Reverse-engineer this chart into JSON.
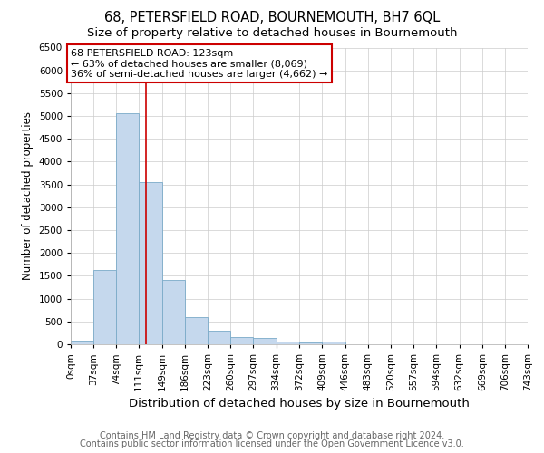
{
  "title": "68, PETERSFIELD ROAD, BOURNEMOUTH, BH7 6QL",
  "subtitle": "Size of property relative to detached houses in Bournemouth",
  "xlabel": "Distribution of detached houses by size in Bournemouth",
  "ylabel": "Number of detached properties",
  "footer1": "Contains HM Land Registry data © Crown copyright and database right 2024.",
  "footer2": "Contains public sector information licensed under the Open Government Licence v3.0.",
  "bin_edges": [
    0,
    37,
    74,
    111,
    149,
    186,
    223,
    260,
    297,
    334,
    372,
    409,
    446,
    483,
    520,
    557,
    594,
    632,
    669,
    706,
    743
  ],
  "bar_heights": [
    75,
    1620,
    5060,
    3560,
    1400,
    590,
    300,
    155,
    145,
    55,
    35,
    55,
    0,
    0,
    0,
    0,
    0,
    0,
    0,
    0
  ],
  "bar_color": "#c5d8ed",
  "bar_edge_color": "#7aaac8",
  "property_line_x": 123,
  "property_line_color": "#cc0000",
  "annotation_text": "68 PETERSFIELD ROAD: 123sqm\n← 63% of detached houses are smaller (8,069)\n36% of semi-detached houses are larger (4,662) →",
  "annotation_box_color": "#cc0000",
  "annotation_text_color": "#000000",
  "ylim": [
    0,
    6500
  ],
  "yticks": [
    0,
    500,
    1000,
    1500,
    2000,
    2500,
    3000,
    3500,
    4000,
    4500,
    5000,
    5500,
    6000,
    6500
  ],
  "xtick_labels": [
    "0sqm",
    "37sqm",
    "74sqm",
    "111sqm",
    "149sqm",
    "186sqm",
    "223sqm",
    "260sqm",
    "297sqm",
    "334sqm",
    "372sqm",
    "409sqm",
    "446sqm",
    "483sqm",
    "520sqm",
    "557sqm",
    "594sqm",
    "632sqm",
    "669sqm",
    "706sqm",
    "743sqm"
  ],
  "grid_color": "#cccccc",
  "background_color": "#ffffff",
  "title_fontsize": 10.5,
  "subtitle_fontsize": 9.5,
  "xlabel_fontsize": 9.5,
  "ylabel_fontsize": 8.5,
  "tick_fontsize": 7.5,
  "footer_fontsize": 7.0,
  "annotation_fontsize": 8.0
}
